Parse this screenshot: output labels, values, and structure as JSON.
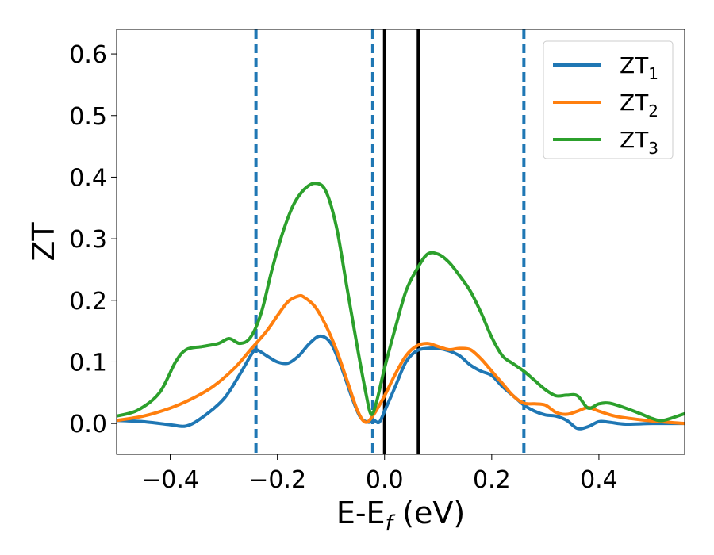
{
  "chart_data": {
    "type": "line",
    "xlabel": "E-E",
    "xlabel_sub": "f",
    "xlabel_unit": " (eV)",
    "ylabel": "ZT",
    "xlim": [
      -0.5,
      0.56
    ],
    "ylim": [
      -0.05,
      0.64
    ],
    "xticks": [
      -0.4,
      -0.2,
      0.0,
      0.2,
      0.4
    ],
    "xtick_labels": [
      "−0.4",
      "−0.2",
      "0.0",
      "0.2",
      "0.4"
    ],
    "yticks": [
      0.0,
      0.1,
      0.2,
      0.3,
      0.4,
      0.5,
      0.6
    ],
    "ytick_labels": [
      "0.0",
      "0.1",
      "0.2",
      "0.3",
      "0.4",
      "0.5",
      "0.6"
    ],
    "grid": false,
    "legend_position": "top-right",
    "vlines": [
      {
        "x": -0.24,
        "style": "dashed",
        "color": "#1f77b4"
      },
      {
        "x": -0.022,
        "style": "dashed",
        "color": "#1f77b4"
      },
      {
        "x": 0.0,
        "style": "solid",
        "color": "#000000"
      },
      {
        "x": 0.063,
        "style": "solid",
        "color": "#000000"
      },
      {
        "x": 0.26,
        "style": "dashed",
        "color": "#1f77b4"
      }
    ],
    "series": [
      {
        "name": "ZT",
        "sub": "1",
        "color": "#1f77b4",
        "points": [
          [
            -0.5,
            0.005
          ],
          [
            -0.45,
            0.003
          ],
          [
            -0.4,
            -0.002
          ],
          [
            -0.37,
            -0.004
          ],
          [
            -0.34,
            0.01
          ],
          [
            -0.3,
            0.04
          ],
          [
            -0.27,
            0.08
          ],
          [
            -0.25,
            0.11
          ],
          [
            -0.24,
            0.12
          ],
          [
            -0.22,
            0.11
          ],
          [
            -0.2,
            0.1
          ],
          [
            -0.18,
            0.098
          ],
          [
            -0.16,
            0.11
          ],
          [
            -0.14,
            0.13
          ],
          [
            -0.12,
            0.142
          ],
          [
            -0.1,
            0.13
          ],
          [
            -0.08,
            0.09
          ],
          [
            -0.06,
            0.04
          ],
          [
            -0.045,
            0.01
          ],
          [
            -0.03,
            0.002
          ],
          [
            -0.02,
            0.005
          ],
          [
            -0.01,
            0.002
          ],
          [
            0.0,
            0.02
          ],
          [
            0.02,
            0.06
          ],
          [
            0.04,
            0.1
          ],
          [
            0.06,
            0.118
          ],
          [
            0.08,
            0.122
          ],
          [
            0.1,
            0.122
          ],
          [
            0.12,
            0.118
          ],
          [
            0.14,
            0.11
          ],
          [
            0.16,
            0.095
          ],
          [
            0.18,
            0.085
          ],
          [
            0.2,
            0.078
          ],
          [
            0.22,
            0.06
          ],
          [
            0.24,
            0.045
          ],
          [
            0.26,
            0.03
          ],
          [
            0.28,
            0.02
          ],
          [
            0.3,
            0.014
          ],
          [
            0.32,
            0.012
          ],
          [
            0.34,
            0.005
          ],
          [
            0.36,
            -0.008
          ],
          [
            0.38,
            -0.005
          ],
          [
            0.4,
            0.003
          ],
          [
            0.42,
            0.002
          ],
          [
            0.45,
            -0.001
          ],
          [
            0.5,
            0.0
          ],
          [
            0.56,
            0.0
          ]
        ]
      },
      {
        "name": "ZT",
        "sub": "2",
        "color": "#ff7f0e",
        "points": [
          [
            -0.5,
            0.005
          ],
          [
            -0.45,
            0.012
          ],
          [
            -0.4,
            0.025
          ],
          [
            -0.36,
            0.04
          ],
          [
            -0.32,
            0.06
          ],
          [
            -0.28,
            0.09
          ],
          [
            -0.25,
            0.12
          ],
          [
            -0.22,
            0.15
          ],
          [
            -0.2,
            0.175
          ],
          [
            -0.18,
            0.198
          ],
          [
            -0.16,
            0.207
          ],
          [
            -0.15,
            0.205
          ],
          [
            -0.13,
            0.19
          ],
          [
            -0.11,
            0.16
          ],
          [
            -0.09,
            0.12
          ],
          [
            -0.07,
            0.07
          ],
          [
            -0.05,
            0.02
          ],
          [
            -0.035,
            0.002
          ],
          [
            -0.02,
            0.015
          ],
          [
            0.0,
            0.045
          ],
          [
            0.02,
            0.08
          ],
          [
            0.04,
            0.11
          ],
          [
            0.06,
            0.126
          ],
          [
            0.08,
            0.13
          ],
          [
            0.1,
            0.125
          ],
          [
            0.12,
            0.12
          ],
          [
            0.14,
            0.122
          ],
          [
            0.16,
            0.12
          ],
          [
            0.18,
            0.105
          ],
          [
            0.2,
            0.085
          ],
          [
            0.22,
            0.065
          ],
          [
            0.24,
            0.045
          ],
          [
            0.26,
            0.033
          ],
          [
            0.28,
            0.032
          ],
          [
            0.3,
            0.03
          ],
          [
            0.32,
            0.018
          ],
          [
            0.34,
            0.015
          ],
          [
            0.36,
            0.02
          ],
          [
            0.38,
            0.026
          ],
          [
            0.4,
            0.02
          ],
          [
            0.43,
            0.012
          ],
          [
            0.46,
            0.008
          ],
          [
            0.5,
            0.004
          ],
          [
            0.56,
            0.0
          ]
        ]
      },
      {
        "name": "ZT",
        "sub": "3",
        "color": "#2ca02c",
        "points": [
          [
            -0.5,
            0.012
          ],
          [
            -0.46,
            0.022
          ],
          [
            -0.42,
            0.05
          ],
          [
            -0.39,
            0.1
          ],
          [
            -0.37,
            0.12
          ],
          [
            -0.34,
            0.125
          ],
          [
            -0.31,
            0.13
          ],
          [
            -0.29,
            0.138
          ],
          [
            -0.27,
            0.13
          ],
          [
            -0.25,
            0.14
          ],
          [
            -0.23,
            0.18
          ],
          [
            -0.21,
            0.25
          ],
          [
            -0.19,
            0.31
          ],
          [
            -0.17,
            0.355
          ],
          [
            -0.15,
            0.38
          ],
          [
            -0.13,
            0.39
          ],
          [
            -0.11,
            0.378
          ],
          [
            -0.09,
            0.32
          ],
          [
            -0.07,
            0.22
          ],
          [
            -0.05,
            0.12
          ],
          [
            -0.035,
            0.05
          ],
          [
            -0.025,
            0.015
          ],
          [
            -0.015,
            0.035
          ],
          [
            0.0,
            0.09
          ],
          [
            0.02,
            0.155
          ],
          [
            0.04,
            0.215
          ],
          [
            0.06,
            0.25
          ],
          [
            0.08,
            0.275
          ],
          [
            0.1,
            0.275
          ],
          [
            0.12,
            0.262
          ],
          [
            0.14,
            0.24
          ],
          [
            0.16,
            0.215
          ],
          [
            0.18,
            0.18
          ],
          [
            0.2,
            0.14
          ],
          [
            0.22,
            0.11
          ],
          [
            0.24,
            0.097
          ],
          [
            0.26,
            0.085
          ],
          [
            0.28,
            0.07
          ],
          [
            0.3,
            0.055
          ],
          [
            0.32,
            0.045
          ],
          [
            0.34,
            0.046
          ],
          [
            0.36,
            0.045
          ],
          [
            0.38,
            0.025
          ],
          [
            0.4,
            0.032
          ],
          [
            0.42,
            0.033
          ],
          [
            0.45,
            0.025
          ],
          [
            0.48,
            0.015
          ],
          [
            0.5,
            0.008
          ],
          [
            0.52,
            0.005
          ],
          [
            0.56,
            0.016
          ]
        ]
      }
    ]
  }
}
